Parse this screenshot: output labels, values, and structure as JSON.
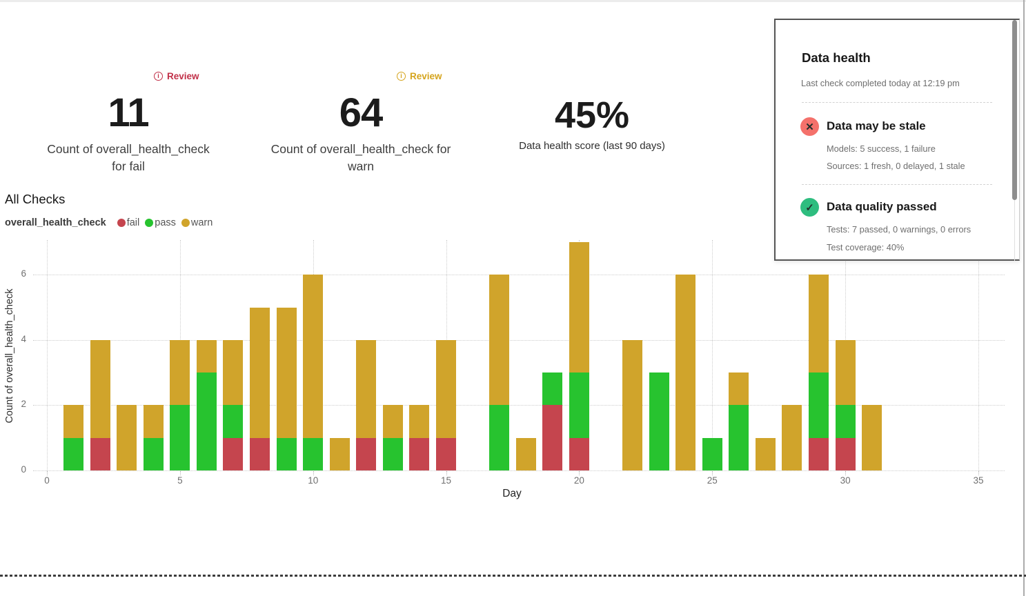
{
  "kpis": [
    {
      "review_label": "Review",
      "review_color": "#c13048",
      "value": "11",
      "label": "Count of overall_health_check for fail"
    },
    {
      "review_label": "Review",
      "review_color": "#d5a41d",
      "value": "64",
      "label": "Count of overall_health_check for warn"
    },
    {
      "value": "45%",
      "label": "Data health score (last 90 days)"
    }
  ],
  "health_panel": {
    "title": "Data health",
    "subtitle": "Last check completed today at 12:19 pm",
    "sections": [
      {
        "icon": "x-circle-icon",
        "icon_color": "#f4716b",
        "icon_glyph": "✕",
        "title": "Data may be stale",
        "lines": [
          "Models: 5 success, 1 failure",
          "Sources: 1 fresh, 0 delayed, 1 stale"
        ]
      },
      {
        "icon": "check-circle-icon",
        "icon_color": "#2ebd7f",
        "icon_glyph": "✓",
        "title": "Data quality passed",
        "lines": [
          "Tests: 7 passed, 0 warnings, 0 errors",
          "Test coverage: 40%"
        ]
      }
    ]
  },
  "chart": {
    "heading": "All Checks",
    "legend": {
      "series_name": "overall_health_check",
      "items": [
        {
          "label": "fail",
          "color": "#c5454e"
        },
        {
          "label": "pass",
          "color": "#27c32f"
        },
        {
          "label": "warn",
          "color": "#d0a42b"
        }
      ]
    }
  },
  "chart_data": {
    "type": "bar",
    "stacked": true,
    "title": "All Checks",
    "xlabel": "Day",
    "ylabel": "Count of overall_health_check",
    "xlim": [
      0,
      35
    ],
    "ylim": [
      0,
      7
    ],
    "x_ticks": [
      0,
      5,
      10,
      15,
      20,
      25,
      30,
      35
    ],
    "y_ticks": [
      0,
      2,
      4,
      6
    ],
    "grid": true,
    "legend_position": "top-left",
    "categories": [
      1,
      2,
      3,
      4,
      5,
      6,
      7,
      8,
      9,
      10,
      11,
      12,
      13,
      14,
      15,
      17,
      18,
      19,
      20,
      22,
      23,
      24,
      25,
      26,
      27,
      28,
      29,
      30,
      31
    ],
    "series": [
      {
        "name": "fail",
        "color": "#c5454e",
        "values": [
          0,
          1,
          0,
          0,
          0,
          0,
          1,
          1,
          0,
          0,
          0,
          1,
          0,
          1,
          1,
          0,
          0,
          2,
          1,
          0,
          0,
          0,
          0,
          0,
          0,
          0,
          1,
          1,
          0
        ]
      },
      {
        "name": "pass",
        "color": "#27c32f",
        "values": [
          1,
          0,
          0,
          1,
          2,
          3,
          1,
          0,
          1,
          1,
          0,
          0,
          1,
          0,
          0,
          2,
          0,
          1,
          2,
          0,
          3,
          0,
          1,
          2,
          0,
          0,
          2,
          1,
          0
        ]
      },
      {
        "name": "warn",
        "color": "#d0a42b",
        "values": [
          1,
          3,
          2,
          1,
          2,
          1,
          2,
          4,
          4,
          5,
          1,
          3,
          1,
          1,
          3,
          4,
          1,
          0,
          4,
          4,
          0,
          6,
          0,
          1,
          1,
          2,
          3,
          2,
          2
        ]
      }
    ]
  }
}
